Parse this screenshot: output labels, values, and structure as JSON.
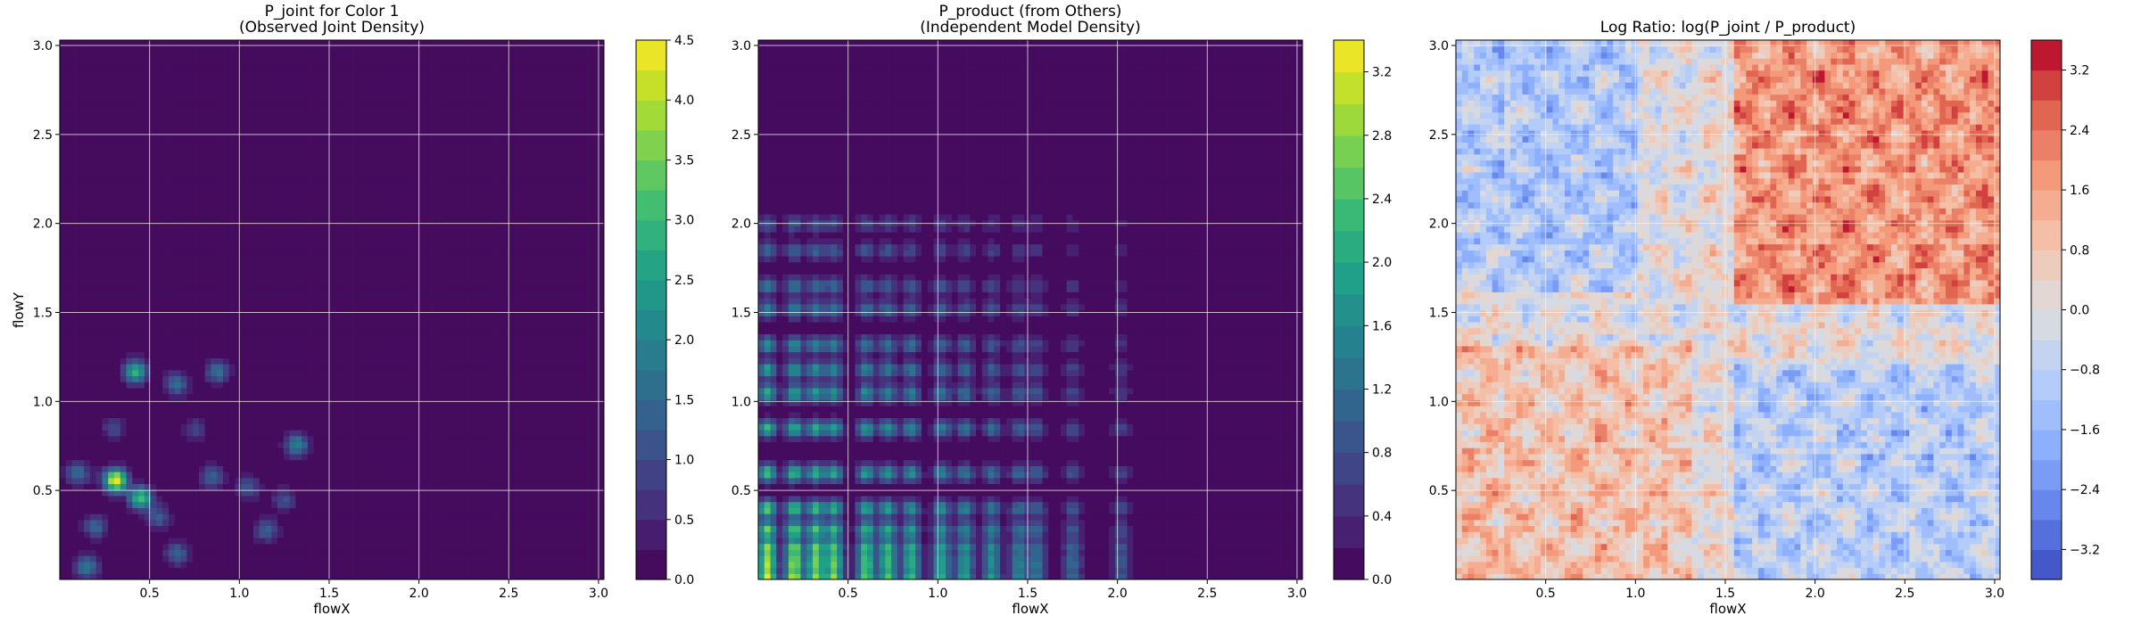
{
  "chart_data": [
    {
      "type": "heatmap",
      "title_line1": "P_joint for Color 1",
      "title_line2": "(Observed Joint Density)",
      "xlabel": "flowX",
      "ylabel": "flowY",
      "xlim": [
        0.0,
        3.03
      ],
      "ylim": [
        0.0,
        3.03
      ],
      "xticks": [
        "0.5",
        "1.0",
        "1.5",
        "2.0",
        "2.5",
        "3.0"
      ],
      "yticks": [
        "0.5",
        "1.0",
        "1.5",
        "2.0",
        "2.5",
        "3.0"
      ],
      "grid": true,
      "colormap": "viridis",
      "colorbar": {
        "min": 0.0,
        "max": 4.5,
        "levels": 18,
        "ticks": [
          "0.0",
          "0.5",
          "1.0",
          "1.5",
          "2.0",
          "2.5",
          "3.0",
          "3.5",
          "4.0",
          "4.5"
        ]
      },
      "peaks": [
        {
          "x": 0.31,
          "y": 0.56,
          "value": 4.5
        },
        {
          "x": 0.45,
          "y": 0.46,
          "value": 3.2
        },
        {
          "x": 0.42,
          "y": 1.17,
          "value": 2.8
        },
        {
          "x": 0.1,
          "y": 0.6,
          "value": 1.6
        },
        {
          "x": 0.2,
          "y": 0.3,
          "value": 1.5
        },
        {
          "x": 0.65,
          "y": 1.1,
          "value": 1.6
        },
        {
          "x": 0.88,
          "y": 1.17,
          "value": 1.7
        },
        {
          "x": 0.85,
          "y": 0.58,
          "value": 1.4
        },
        {
          "x": 1.05,
          "y": 0.52,
          "value": 1.2
        },
        {
          "x": 1.32,
          "y": 0.76,
          "value": 2.0
        },
        {
          "x": 0.15,
          "y": 0.07,
          "value": 1.8
        },
        {
          "x": 0.65,
          "y": 0.15,
          "value": 1.5
        },
        {
          "x": 1.15,
          "y": 0.28,
          "value": 1.4
        },
        {
          "x": 0.55,
          "y": 0.35,
          "value": 1.3
        },
        {
          "x": 0.3,
          "y": 0.85,
          "value": 1.0
        },
        {
          "x": 1.25,
          "y": 0.45,
          "value": 1.1
        },
        {
          "x": 0.75,
          "y": 0.85,
          "value": 0.9
        }
      ]
    },
    {
      "type": "heatmap",
      "title_line1": "P_product (from Others)",
      "title_line2": "(Independent Model Density)",
      "xlabel": "flowX",
      "ylabel": "",
      "xlim": [
        0.0,
        3.03
      ],
      "ylim": [
        0.0,
        3.03
      ],
      "xticks": [
        "0.5",
        "1.0",
        "1.5",
        "2.0",
        "2.5",
        "3.0"
      ],
      "yticks": [
        "0.5",
        "1.0",
        "1.5",
        "2.0",
        "2.5",
        "3.0"
      ],
      "grid": true,
      "colormap": "viridis",
      "colorbar": {
        "min": 0.0,
        "max": 3.4,
        "levels": 17,
        "ticks": [
          "0.0",
          "0.4",
          "0.8",
          "1.2",
          "1.6",
          "2.0",
          "2.4",
          "2.8",
          "3.2"
        ]
      },
      "x_bands": [
        0.05,
        0.2,
        0.32,
        0.42,
        0.6,
        0.72,
        0.85,
        1.02,
        1.15,
        1.3,
        1.45,
        1.55,
        1.75,
        2.02
      ],
      "y_bands": [
        0.02,
        0.1,
        0.18,
        0.28,
        0.4,
        0.6,
        0.85,
        1.05,
        1.18,
        1.32,
        1.52,
        1.65,
        1.85,
        2.0
      ],
      "peak_value": 3.2
    },
    {
      "type": "heatmap",
      "title_line1": "Log Ratio: log(P_joint / P_product)",
      "title_line2": "",
      "xlabel": "flowX",
      "ylabel": "",
      "xlim": [
        0.0,
        3.03
      ],
      "ylim": [
        0.0,
        3.03
      ],
      "xticks": [
        "0.5",
        "1.0",
        "1.5",
        "2.0",
        "2.5",
        "3.0"
      ],
      "yticks": [
        "0.5",
        "1.0",
        "1.5",
        "2.0",
        "2.5",
        "3.0"
      ],
      "grid": true,
      "colormap": "coolwarm",
      "colorbar": {
        "min": -3.6,
        "max": 3.6,
        "levels": 18,
        "ticks": [
          "−3.2",
          "−2.4",
          "−1.6",
          "−0.8",
          "0.0",
          "0.8",
          "1.6",
          "2.4",
          "3.2"
        ]
      },
      "regions": [
        {
          "x": [
            1.55,
            3.03
          ],
          "y": [
            1.55,
            3.03
          ],
          "value": 1.8
        },
        {
          "x": [
            1.55,
            3.03
          ],
          "y": [
            0.0,
            1.2
          ],
          "value": -0.9
        },
        {
          "x": [
            0.0,
            1.0
          ],
          "y": [
            1.6,
            3.03
          ],
          "value": -1.1
        },
        {
          "x": [
            0.0,
            1.3
          ],
          "y": [
            0.0,
            1.3
          ],
          "value": 0.9
        }
      ]
    }
  ]
}
